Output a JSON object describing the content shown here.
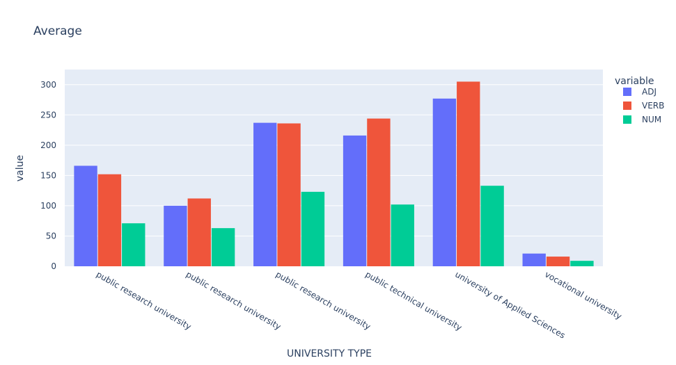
{
  "chart_data": {
    "type": "bar",
    "title": "Average",
    "xlabel": "UNIVERSITY TYPE",
    "ylabel": "value",
    "ylim": [
      0,
      325
    ],
    "yticks": [
      0,
      50,
      100,
      150,
      200,
      250,
      300
    ],
    "categories": [
      "public research university",
      "public research university",
      "public research university",
      "public technical university",
      "university of Applied Sciences",
      "vocational university"
    ],
    "legend_title": "variable",
    "legend_position": "top-right",
    "grid": true,
    "series": [
      {
        "name": "ADJ",
        "color": "#636efa",
        "values": [
          166,
          100,
          237,
          216,
          277,
          21
        ]
      },
      {
        "name": "VERB",
        "color": "#ef553b",
        "values": [
          152,
          112,
          236,
          244,
          305,
          16
        ]
      },
      {
        "name": "NUM",
        "color": "#00cc96",
        "values": [
          71,
          63,
          123,
          102,
          133,
          9
        ]
      }
    ],
    "plot_background": "#e5ecf6"
  }
}
